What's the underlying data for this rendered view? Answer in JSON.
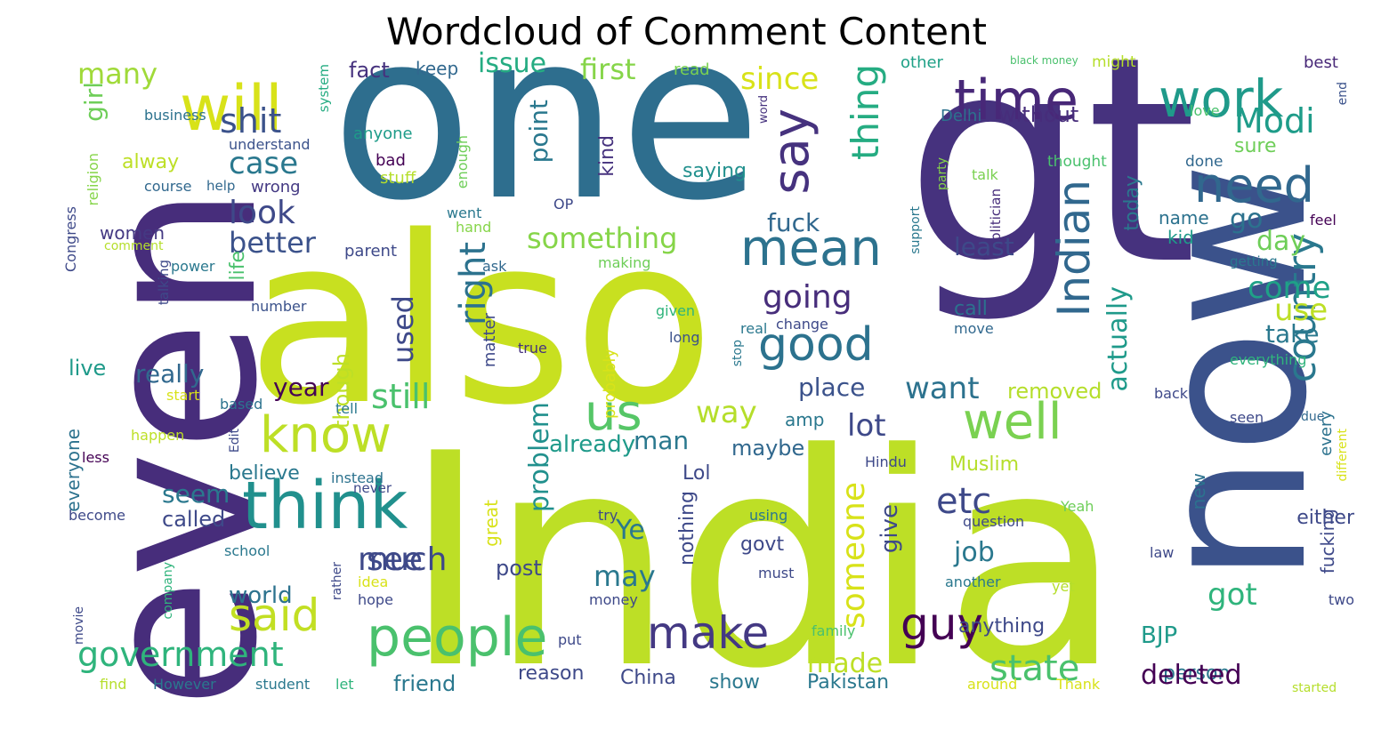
{
  "title": "Wordcloud of Comment Content",
  "palette": {
    "dark_purple": "#46327e",
    "blue": "#365c8d",
    "teal": "#277f8e",
    "green": "#1fa187",
    "light_green": "#4ac16d",
    "lime": "#a0da39",
    "yellow": "#d6e21b",
    "deep": "#440154"
  },
  "words": [
    {
      "text": "India",
      "color": "#bddf26",
      "emph": 1.0
    },
    {
      "text": "gt",
      "color": "#46327e",
      "emph": 0.98
    },
    {
      "text": "one",
      "color": "#2e6e8e",
      "emph": 0.95
    },
    {
      "text": "also",
      "color": "#c8e020",
      "emph": 0.93
    },
    {
      "text": "even",
      "color": "#472d7b",
      "emph": 0.9
    },
    {
      "text": "now",
      "color": "#3b528b",
      "emph": 0.9
    },
    {
      "text": "will",
      "color": "#d8e219",
      "emph": 0.5
    },
    {
      "text": "time",
      "color": "#482878",
      "emph": 0.5
    },
    {
      "text": "work",
      "color": "#1f9a8a",
      "emph": 0.48
    },
    {
      "text": "say",
      "color": "#46327e",
      "emph": 0.45
    },
    {
      "text": "think",
      "color": "#21908d",
      "emph": 0.55
    },
    {
      "text": "know",
      "color": "#bddf26",
      "emph": 0.55
    },
    {
      "text": "people",
      "color": "#4ac16d",
      "emph": 0.55
    },
    {
      "text": "well",
      "color": "#7ad151",
      "emph": 0.5
    },
    {
      "text": "mean",
      "color": "#2c728e",
      "emph": 0.5
    },
    {
      "text": "need",
      "color": "#31688e",
      "emph": 0.45
    },
    {
      "text": "good",
      "color": "#2c728e",
      "emph": 0.45
    },
    {
      "text": "Indian",
      "color": "#31688e",
      "emph": 0.45
    },
    {
      "text": "thing",
      "color": "#25ac82",
      "emph": 0.42
    },
    {
      "text": "us",
      "color": "#56c667",
      "emph": 0.42
    },
    {
      "text": "make",
      "color": "#443983",
      "emph": 0.45
    },
    {
      "text": "said",
      "color": "#c2df23",
      "emph": 0.45
    },
    {
      "text": "guy",
      "color": "#440154",
      "emph": 0.45
    },
    {
      "text": "country",
      "color": "#2a788e",
      "emph": 0.4
    },
    {
      "text": "government",
      "color": "#2fb47c",
      "emph": 0.38
    },
    {
      "text": "Modi",
      "color": "#1e9c89",
      "emph": 0.34
    },
    {
      "text": "many",
      "color": "#a0da39",
      "emph": 0.3
    },
    {
      "text": "issue",
      "color": "#25ac82",
      "emph": 0.26
    },
    {
      "text": "first",
      "color": "#86d549",
      "emph": 0.28
    },
    {
      "text": "since",
      "color": "#d8e219",
      "emph": 0.3
    },
    {
      "text": "fact",
      "color": "#46327e",
      "emph": 0.22
    },
    {
      "text": "keep",
      "color": "#31688e",
      "emph": 0.18
    },
    {
      "text": "read",
      "color": "#7ad151",
      "emph": 0.16
    },
    {
      "text": "other",
      "color": "#1fa187",
      "emph": 0.16
    },
    {
      "text": "black money",
      "color": "#4ac16d",
      "emph": 0.12
    },
    {
      "text": "might",
      "color": "#b5de2b",
      "emph": 0.16
    },
    {
      "text": "best",
      "color": "#482878",
      "emph": 0.16
    },
    {
      "text": "shit",
      "color": "#3b528b",
      "emph": 0.3
    },
    {
      "text": "girl",
      "color": "#6ece58",
      "emph": 0.24
    },
    {
      "text": "business",
      "color": "#2c728e",
      "emph": 0.16
    },
    {
      "text": "system",
      "color": "#25ac82",
      "emph": 0.15
    },
    {
      "text": "understand",
      "color": "#3b528b",
      "emph": 0.16
    },
    {
      "text": "case",
      "color": "#2a788e",
      "emph": 0.3
    },
    {
      "text": "look",
      "color": "#3e4989",
      "emph": 0.32
    },
    {
      "text": "alway",
      "color": "#bddf26",
      "emph": 0.24
    },
    {
      "text": "course",
      "color": "#31688e",
      "emph": 0.16
    },
    {
      "text": "help",
      "color": "#31688e",
      "emph": 0.14
    },
    {
      "text": "wrong",
      "color": "#443983",
      "emph": 0.18
    },
    {
      "text": "anyone",
      "color": "#1e9c89",
      "emph": 0.18
    },
    {
      "text": "bad",
      "color": "#440154",
      "emph": 0.18
    },
    {
      "text": "stuff",
      "color": "#b5de2b",
      "emph": 0.18
    },
    {
      "text": "enough",
      "color": "#6ece58",
      "emph": 0.16
    },
    {
      "text": "point",
      "color": "#2a788e",
      "emph": 0.32
    },
    {
      "text": "kind",
      "color": "#46327e",
      "emph": 0.22
    },
    {
      "text": "saying",
      "color": "#21908d",
      "emph": 0.24
    },
    {
      "text": "Delhi",
      "color": "#2c728e",
      "emph": 0.18
    },
    {
      "text": "without",
      "color": "#472d7b",
      "emph": 0.22
    },
    {
      "text": "thought",
      "color": "#4ac16d",
      "emph": 0.16
    },
    {
      "text": "done",
      "color": "#31688e",
      "emph": 0.16
    },
    {
      "text": "love",
      "color": "#4ac16d",
      "emph": 0.16
    },
    {
      "text": "end",
      "color": "#3b528b",
      "emph": 0.14
    },
    {
      "text": "word",
      "color": "#46327e",
      "emph": 0.13
    },
    {
      "text": "talk",
      "color": "#7ad151",
      "emph": 0.16
    },
    {
      "text": "sure",
      "color": "#6ece58",
      "emph": 0.22
    },
    {
      "text": "Congress",
      "color": "#3e4989",
      "emph": 0.16
    },
    {
      "text": "religion",
      "color": "#86d549",
      "emph": 0.16
    },
    {
      "text": "comment",
      "color": "#b5de2b",
      "emph": 0.13
    },
    {
      "text": "women",
      "color": "#443983",
      "emph": 0.2
    },
    {
      "text": "better",
      "color": "#3b528b",
      "emph": 0.3
    },
    {
      "text": "power",
      "color": "#2a788e",
      "emph": 0.16
    },
    {
      "text": "OP",
      "color": "#3e4989",
      "emph": 0.16
    },
    {
      "text": "went",
      "color": "#2a788e",
      "emph": 0.16
    },
    {
      "text": "hand",
      "color": "#86d549",
      "emph": 0.16
    },
    {
      "text": "something",
      "color": "#86d549",
      "emph": 0.3
    },
    {
      "text": "fuck",
      "color": "#31688e",
      "emph": 0.26
    },
    {
      "text": "party",
      "color": "#86d549",
      "emph": 0.14
    },
    {
      "text": "support",
      "color": "#2a788e",
      "emph": 0.14
    },
    {
      "text": "politician",
      "color": "#472d7b",
      "emph": 0.15
    },
    {
      "text": "name",
      "color": "#2c728e",
      "emph": 0.2
    },
    {
      "text": "kid",
      "color": "#1f9a8a",
      "emph": 0.2
    },
    {
      "text": "go",
      "color": "#2c728e",
      "emph": 0.3
    },
    {
      "text": "day",
      "color": "#6ece58",
      "emph": 0.28
    },
    {
      "text": "feel",
      "color": "#440154",
      "emph": 0.16
    },
    {
      "text": "getting",
      "color": "#2a788e",
      "emph": 0.15
    },
    {
      "text": "parent",
      "color": "#3e4989",
      "emph": 0.18
    },
    {
      "text": "ask",
      "color": "#31688e",
      "emph": 0.16
    },
    {
      "text": "making",
      "color": "#6ece58",
      "emph": 0.16
    },
    {
      "text": "least",
      "color": "#3e4989",
      "emph": 0.26
    },
    {
      "text": "today",
      "color": "#2a788e",
      "emph": 0.22
    },
    {
      "text": "come",
      "color": "#1fa187",
      "emph": 0.32
    },
    {
      "text": "use",
      "color": "#bddf26",
      "emph": 0.3
    },
    {
      "text": "talking",
      "color": "#3e4989",
      "emph": 0.14
    },
    {
      "text": "life",
      "color": "#4ac16d",
      "emph": 0.2
    },
    {
      "text": "number",
      "color": "#3b528b",
      "emph": 0.16
    },
    {
      "text": "going",
      "color": "#472d7b",
      "emph": 0.32
    },
    {
      "text": "right",
      "color": "#2c728e",
      "emph": 0.34
    },
    {
      "text": "used",
      "color": "#3e4989",
      "emph": 0.3
    },
    {
      "text": "call",
      "color": "#2c728e",
      "emph": 0.22
    },
    {
      "text": "change",
      "color": "#3e4989",
      "emph": 0.16
    },
    {
      "text": "move",
      "color": "#31688e",
      "emph": 0.16
    },
    {
      "text": "given",
      "color": "#2fb47c",
      "emph": 0.16
    },
    {
      "text": "real",
      "color": "#2a788e",
      "emph": 0.16
    },
    {
      "text": "long",
      "color": "#3b528b",
      "emph": 0.16
    },
    {
      "text": "true",
      "color": "#46327e",
      "emph": 0.16
    },
    {
      "text": "take",
      "color": "#2a788e",
      "emph": 0.28
    },
    {
      "text": "everything",
      "color": "#2fb47c",
      "emph": 0.16
    },
    {
      "text": "live",
      "color": "#1f9a8a",
      "emph": 0.24
    },
    {
      "text": "really",
      "color": "#31688e",
      "emph": 0.28
    },
    {
      "text": "though",
      "color": "#bddf26",
      "emph": 0.24
    },
    {
      "text": "matter",
      "color": "#3e4989",
      "emph": 0.2
    },
    {
      "text": "probably",
      "color": "#d8e219",
      "emph": 0.2
    },
    {
      "text": "stop",
      "color": "#2a788e",
      "emph": 0.14
    },
    {
      "text": "place",
      "color": "#3b528b",
      "emph": 0.28
    },
    {
      "text": "removed",
      "color": "#b5de2b",
      "emph": 0.24
    },
    {
      "text": "start",
      "color": "#d8e219",
      "emph": 0.16
    },
    {
      "text": "based",
      "color": "#2c728e",
      "emph": 0.16
    },
    {
      "text": "year",
      "color": "#440154",
      "emph": 0.26
    },
    {
      "text": "still",
      "color": "#4ac16d",
      "emph": 0.34
    },
    {
      "text": "want",
      "color": "#2c728e",
      "emph": 0.32
    },
    {
      "text": "actually",
      "color": "#1f9a8a",
      "emph": 0.28
    },
    {
      "text": "back",
      "color": "#3e4989",
      "emph": 0.16
    },
    {
      "text": "tell",
      "color": "#2a788e",
      "emph": 0.16
    },
    {
      "text": "way",
      "color": "#b5de2b",
      "emph": 0.32
    },
    {
      "text": "amp",
      "color": "#2a788e",
      "emph": 0.2
    },
    {
      "text": "lot",
      "color": "#3e4989",
      "emph": 0.3
    },
    {
      "text": "seen",
      "color": "#3e4989",
      "emph": 0.16
    },
    {
      "text": "due",
      "color": "#31688e",
      "emph": 0.16
    },
    {
      "text": "happen",
      "color": "#bddf26",
      "emph": 0.16
    },
    {
      "text": "Edit",
      "color": "#3e4989",
      "emph": 0.14
    },
    {
      "text": "everyone",
      "color": "#2c728e",
      "emph": 0.2
    },
    {
      "text": "less",
      "color": "#440154",
      "emph": 0.16
    },
    {
      "text": "problem",
      "color": "#21908d",
      "emph": 0.3
    },
    {
      "text": "already",
      "color": "#1f9a8a",
      "emph": 0.24
    },
    {
      "text": "man",
      "color": "#2a788e",
      "emph": 0.26
    },
    {
      "text": "maybe",
      "color": "#31688e",
      "emph": 0.22
    },
    {
      "text": "Hindu",
      "color": "#3e4989",
      "emph": 0.16
    },
    {
      "text": "every",
      "color": "#2c728e",
      "emph": 0.2
    },
    {
      "text": "different",
      "color": "#d8e219",
      "emph": 0.14
    },
    {
      "text": "believe",
      "color": "#2a788e",
      "emph": 0.22
    },
    {
      "text": "instead",
      "color": "#2c728e",
      "emph": 0.16
    },
    {
      "text": "Lol",
      "color": "#3e4989",
      "emph": 0.2
    },
    {
      "text": "Muslim",
      "color": "#b5de2b",
      "emph": 0.2
    },
    {
      "text": "seem",
      "color": "#2a788e",
      "emph": 0.26
    },
    {
      "text": "etc",
      "color": "#3e4989",
      "emph": 0.34
    },
    {
      "text": "someone",
      "color": "#d8e219",
      "emph": 0.3
    },
    {
      "text": "new",
      "color": "#2c728e",
      "emph": 0.2
    },
    {
      "text": "never",
      "color": "#3e4989",
      "emph": 0.15
    },
    {
      "text": "become",
      "color": "#3e4989",
      "emph": 0.16
    },
    {
      "text": "called",
      "color": "#3e4989",
      "emph": 0.24
    },
    {
      "text": "great",
      "color": "#d8e219",
      "emph": 0.2
    },
    {
      "text": "Ye",
      "color": "#2a788e",
      "emph": 0.3
    },
    {
      "text": "try",
      "color": "#3e4989",
      "emph": 0.16
    },
    {
      "text": "using",
      "color": "#2a788e",
      "emph": 0.16
    },
    {
      "text": "question",
      "color": "#3e4989",
      "emph": 0.16
    },
    {
      "text": "Yeah",
      "color": "#6ece58",
      "emph": 0.18
    },
    {
      "text": "much",
      "color": "#3e4989",
      "emph": 0.34
    },
    {
      "text": "see",
      "color": "#3e4989",
      "emph": 0.32
    },
    {
      "text": "nothing",
      "color": "#3e4989",
      "emph": 0.22
    },
    {
      "text": "give",
      "color": "#3e4989",
      "emph": 0.26
    },
    {
      "text": "fucking",
      "color": "#3e4989",
      "emph": 0.2
    },
    {
      "text": "either",
      "color": "#3e4989",
      "emph": 0.22
    },
    {
      "text": "law",
      "color": "#3e4989",
      "emph": 0.16
    },
    {
      "text": "school",
      "color": "#2a788e",
      "emph": 0.16
    },
    {
      "text": "company",
      "color": "#2fb47c",
      "emph": 0.14
    },
    {
      "text": "rather",
      "color": "#3e4989",
      "emph": 0.14
    },
    {
      "text": "world",
      "color": "#2c728e",
      "emph": 0.26
    },
    {
      "text": "idea",
      "color": "#d8e219",
      "emph": 0.16
    },
    {
      "text": "hope",
      "color": "#3e4989",
      "emph": 0.16
    },
    {
      "text": "post",
      "color": "#3e4989",
      "emph": 0.24
    },
    {
      "text": "govt",
      "color": "#3e4989",
      "emph": 0.22
    },
    {
      "text": "may",
      "color": "#2a788e",
      "emph": 0.28
    },
    {
      "text": "job",
      "color": "#2a788e",
      "emph": 0.26
    },
    {
      "text": "must",
      "color": "#3e4989",
      "emph": 0.16
    },
    {
      "text": "another",
      "color": "#2a788e",
      "emph": 0.16
    },
    {
      "text": "yet",
      "color": "#b5de2b",
      "emph": 0.16
    },
    {
      "text": "movie",
      "color": "#3e4989",
      "emph": 0.14
    },
    {
      "text": "money",
      "color": "#3e4989",
      "emph": 0.16
    },
    {
      "text": "got",
      "color": "#2fb47c",
      "emph": 0.3
    },
    {
      "text": "anything",
      "color": "#3e4989",
      "emph": 0.22
    },
    {
      "text": "two",
      "color": "#3e4989",
      "emph": 0.16
    },
    {
      "text": "family",
      "color": "#4ac16d",
      "emph": 0.16
    },
    {
      "text": "put",
      "color": "#3e4989",
      "emph": 0.16
    },
    {
      "text": "BJP",
      "color": "#1f9a8a",
      "emph": 0.22
    },
    {
      "text": "person",
      "color": "#2a788e",
      "emph": 0.2
    },
    {
      "text": "state",
      "color": "#4ac16d",
      "emph": 0.32
    },
    {
      "text": "deleted",
      "color": "#440154",
      "emph": 0.24
    },
    {
      "text": "made",
      "color": "#bddf26",
      "emph": 0.28
    },
    {
      "text": "China",
      "color": "#3e4989",
      "emph": 0.22
    },
    {
      "text": "show",
      "color": "#2a788e",
      "emph": 0.24
    },
    {
      "text": "Pakistan",
      "color": "#2a788e",
      "emph": 0.22
    },
    {
      "text": "reason",
      "color": "#3e4989",
      "emph": 0.22
    },
    {
      "text": "friend",
      "color": "#2a788e",
      "emph": 0.24
    },
    {
      "text": "find",
      "color": "#b5de2b",
      "emph": 0.16
    },
    {
      "text": "However",
      "color": "#2a788e",
      "emph": 0.16
    },
    {
      "text": "student",
      "color": "#2a788e",
      "emph": 0.16
    },
    {
      "text": "let",
      "color": "#2fb47c",
      "emph": 0.16
    },
    {
      "text": "around",
      "color": "#d8e219",
      "emph": 0.16
    },
    {
      "text": "Thank",
      "color": "#d8e219",
      "emph": 0.16
    },
    {
      "text": "started",
      "color": "#b5de2b",
      "emph": 0.14
    }
  ]
}
